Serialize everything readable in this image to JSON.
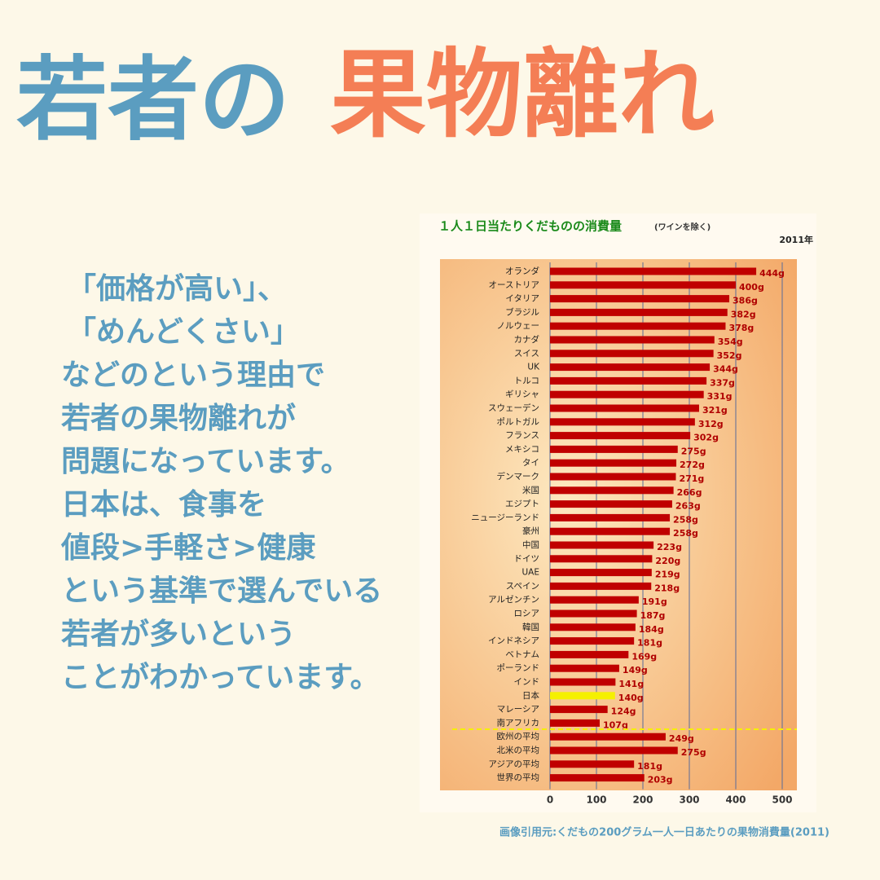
{
  "header": {
    "title_1": "若者の",
    "title_2": "果物離れ"
  },
  "body": {
    "lines": [
      "「価格が高い」、",
      "「めんどくさい」",
      "などのという理由で",
      "若者の果物離れが",
      "問題になっています。",
      "日本は、食事を",
      "値段>手軽さ>健康",
      "という基準で選んでいる",
      "若者が多いという",
      "ことがわかっています。"
    ]
  },
  "source": "画像引用元:くだもの200グラム一人一日あたりの果物消費量(2011)",
  "chart_data": {
    "type": "hbar",
    "title": "１人１日当たりくだものの消費量",
    "subtitle": "(ワインを除く)",
    "annotation": "2011年",
    "categories": [
      "オランダ",
      "オーストリア",
      "イタリア",
      "ブラジル",
      "ノルウェー",
      "カナダ",
      "スイス",
      "UK",
      "トルコ",
      "ギリシャ",
      "スウェーデン",
      "ポルトガル",
      "フランス",
      "メキシコ",
      "タイ",
      "デンマーク",
      "米国",
      "エジプト",
      "ニュージーランド",
      "豪州",
      "中国",
      "ドイツ",
      "UAE",
      "スペイン",
      "アルゼンチン",
      "ロシア",
      "韓国",
      "インドネシア",
      "ベトナム",
      "ポーランド",
      "インド",
      "日本",
      "マレーシア",
      "南アフリカ",
      "欧州の平均",
      "北米の平均",
      "アジアの平均",
      "世界の平均"
    ],
    "values": [
      444,
      400,
      386,
      382,
      378,
      354,
      352,
      344,
      337,
      331,
      321,
      312,
      302,
      275,
      272,
      271,
      266,
      263,
      258,
      258,
      223,
      220,
      219,
      218,
      191,
      187,
      184,
      181,
      169,
      149,
      141,
      140,
      124,
      107,
      249,
      275,
      181,
      203
    ],
    "value_labels": [
      "444g",
      "400g",
      "386g",
      "382g",
      "378g",
      "354g",
      "352g",
      "344g",
      "337g",
      "331g",
      "321g",
      "312g",
      "302g",
      "275g",
      "272g",
      "271g",
      "266g",
      "263g",
      "258g",
      "258g",
      "223g",
      "220g",
      "219g",
      "218g",
      "191g",
      "187g",
      "184g",
      "181g",
      "169g",
      "149g",
      "141g",
      "140g",
      "124g",
      "107g",
      "249g",
      "275g",
      "181g",
      "203g"
    ],
    "colors": [
      "#c00000",
      "#c00000",
      "#c00000",
      "#c00000",
      "#c00000",
      "#c00000",
      "#c00000",
      "#c00000",
      "#c00000",
      "#c00000",
      "#c00000",
      "#c00000",
      "#c00000",
      "#c00000",
      "#c00000",
      "#c00000",
      "#c00000",
      "#c00000",
      "#c00000",
      "#c00000",
      "#c00000",
      "#c00000",
      "#c00000",
      "#c00000",
      "#c00000",
      "#c00000",
      "#c00000",
      "#c00000",
      "#c00000",
      "#c00000",
      "#c00000",
      "#f5f000",
      "#c00000",
      "#c00000",
      "#c00000",
      "#c00000",
      "#c00000",
      "#c00000"
    ],
    "xlim": [
      0,
      500
    ],
    "xticks": [
      0,
      100,
      200,
      300,
      400,
      500
    ],
    "grid": true
  }
}
